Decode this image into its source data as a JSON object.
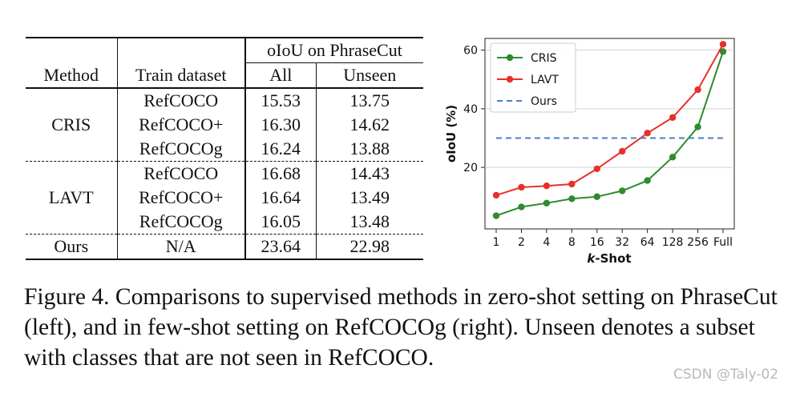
{
  "table": {
    "group_header": "oIoU on PhraseCut",
    "col_method": "Method",
    "col_train": "Train dataset",
    "col_all": "All",
    "col_unseen": "Unseen",
    "groups": [
      {
        "method": "CRIS",
        "rows": [
          {
            "train": "RefCOCO",
            "all": "15.53",
            "unseen": "13.75"
          },
          {
            "train": "RefCOCO+",
            "all": "16.30",
            "unseen": "14.62"
          },
          {
            "train": "RefCOCOg",
            "all": "16.24",
            "unseen": "13.88"
          }
        ]
      },
      {
        "method": "LAVT",
        "rows": [
          {
            "train": "RefCOCO",
            "all": "16.68",
            "unseen": "14.43"
          },
          {
            "train": "RefCOCO+",
            "all": "16.64",
            "unseen": "13.49"
          },
          {
            "train": "RefCOCOg",
            "all": "16.05",
            "unseen": "13.48"
          }
        ]
      },
      {
        "method": "Ours",
        "rows": [
          {
            "train": "N/A",
            "all": "23.64",
            "unseen": "22.98"
          }
        ]
      }
    ]
  },
  "chart_data": {
    "type": "line",
    "categories": [
      "1",
      "2",
      "4",
      "8",
      "16",
      "32",
      "64",
      "128",
      "256",
      "Full"
    ],
    "xlabel": "k-Shot",
    "xlabel_italic_part": "k",
    "xlabel_rest": "-Shot",
    "ylabel": "oIoU (%)",
    "yticks": [
      20,
      40,
      60
    ],
    "ylim": [
      -1,
      64
    ],
    "grid": "horizontal",
    "legend_position": "top-left",
    "series": [
      {
        "name": "CRIS",
        "color": "#2e8b2e",
        "style": "solid-marker",
        "values": [
          3.5,
          6.5,
          7.8,
          9.3,
          10.0,
          12.0,
          15.5,
          23.5,
          33.8,
          59.5
        ]
      },
      {
        "name": "LAVT",
        "color": "#e8302a",
        "style": "solid-marker",
        "values": [
          10.5,
          13.2,
          13.7,
          14.3,
          19.5,
          25.5,
          31.7,
          37.0,
          46.5,
          62.0
        ]
      },
      {
        "name": "Ours",
        "color": "#4a7fc1",
        "style": "dashed",
        "values": [
          30,
          30,
          30,
          30,
          30,
          30,
          30,
          30,
          30,
          30
        ]
      }
    ]
  },
  "caption": "Figure 4. Comparisons to supervised methods in zero-shot setting on PhraseCut (left), and in few-shot setting on RefCOCOg (right). Unseen denotes a subset with classes that are not seen in RefCOCO.",
  "watermark": "CSDN @Taly-02"
}
